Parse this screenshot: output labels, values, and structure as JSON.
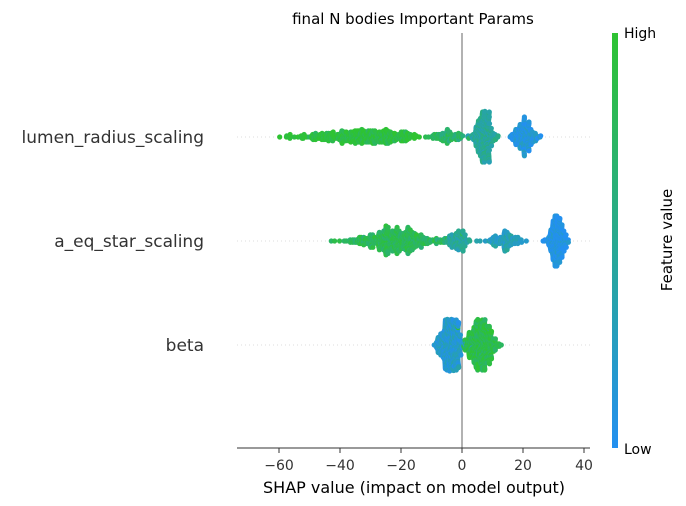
{
  "chart_data": {
    "type": "scatter",
    "subtype": "shap_beeswarm",
    "title": "final N bodies Important Params",
    "xlabel": "SHAP value (impact on model output)",
    "xlim": [
      -74,
      42
    ],
    "xticks": [
      -60,
      -40,
      -20,
      0,
      20,
      40
    ],
    "zero_line": 0,
    "features": [
      "lumen_radius_scaling",
      "a_eq_star_scaling",
      "beta"
    ],
    "colorbar": {
      "label": "Feature value",
      "high_label": "High",
      "low_label": "Low",
      "high_color": "#2ec332",
      "low_color": "#2390f0"
    },
    "distributions": [
      {
        "feature": "lumen_radius_scaling",
        "x_min": -68,
        "x_max": 30,
        "clusters": [
          {
            "center": -32,
            "spread": 18,
            "weight": 0.42,
            "color_value": 0.92
          },
          {
            "center": -5,
            "spread": 6,
            "weight": 0.08,
            "color_value": 0.7
          },
          {
            "center": 7,
            "spread": 3.2,
            "weight": 0.3,
            "color_value": 0.45
          },
          {
            "center": 20,
            "spread": 3.5,
            "weight": 0.2,
            "color_value": 0.1
          }
        ]
      },
      {
        "feature": "a_eq_star_scaling",
        "x_min": -48,
        "x_max": 38,
        "clusters": [
          {
            "center": -22,
            "spread": 13,
            "weight": 0.46,
            "color_value": 0.8
          },
          {
            "center": -2,
            "spread": 4,
            "weight": 0.12,
            "color_value": 0.45
          },
          {
            "center": 14,
            "spread": 6,
            "weight": 0.12,
            "color_value": 0.3
          },
          {
            "center": 31,
            "spread": 3,
            "weight": 0.3,
            "color_value": 0.05
          }
        ]
      },
      {
        "feature": "beta",
        "x_min": -19,
        "x_max": 17,
        "clusters": [
          {
            "center": -4,
            "spread": 3.5,
            "weight": 0.55,
            "color_value": 0.2
          },
          {
            "center": 6,
            "spread": 4.5,
            "weight": 0.45,
            "color_value": 0.85
          }
        ]
      }
    ]
  }
}
